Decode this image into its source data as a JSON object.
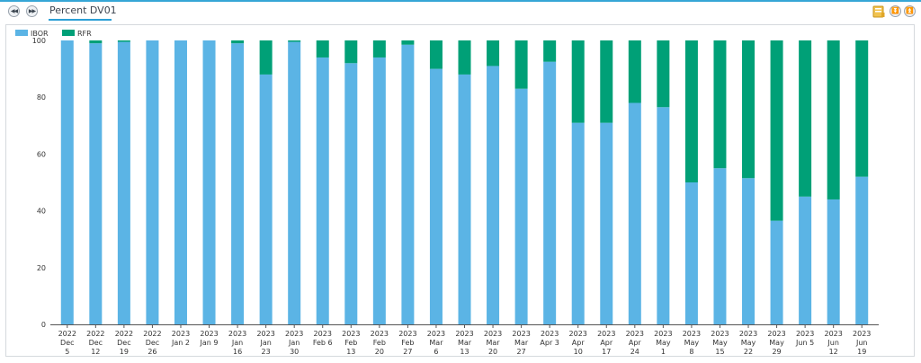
{
  "nav": {
    "prev_icon": "rewind-icon",
    "next_icon": "fast-forward-icon",
    "prev_glyph": "◀◀",
    "next_glyph": "▶▶"
  },
  "tab": {
    "label": "Percent DV01"
  },
  "toolbar_right": {
    "folder_icon": "folder-icon",
    "collapse_icon": "chevron-double-down-icon",
    "expand_icon": "chevron-double-up-icon",
    "collapse_glyph": "⏬",
    "expand_glyph": "⏫"
  },
  "colors": {
    "ibor": "#5bb4e5",
    "rfr": "#00a077",
    "accent": "#2a9fd6"
  },
  "chart_data": {
    "type": "bar",
    "stacked": true,
    "title": "",
    "xlabel": "",
    "ylabel": "",
    "ylim": [
      0,
      100
    ],
    "yticks": [
      0,
      20,
      40,
      60,
      80,
      100
    ],
    "legend": {
      "position": "top-left",
      "entries": [
        "IBOR",
        "RFR"
      ]
    },
    "categories": [
      [
        "2022",
        "Dec",
        "5"
      ],
      [
        "2022",
        "Dec",
        "12"
      ],
      [
        "2022",
        "Dec",
        "19"
      ],
      [
        "2022",
        "Dec",
        "26"
      ],
      [
        "2023",
        "Jan 2"
      ],
      [
        "2023",
        "Jan 9"
      ],
      [
        "2023",
        "Jan",
        "16"
      ],
      [
        "2023",
        "Jan",
        "23"
      ],
      [
        "2023",
        "Jan",
        "30"
      ],
      [
        "2023",
        "Feb 6"
      ],
      [
        "2023",
        "Feb",
        "13"
      ],
      [
        "2023",
        "Feb",
        "20"
      ],
      [
        "2023",
        "Feb",
        "27"
      ],
      [
        "2023",
        "Mar",
        "6"
      ],
      [
        "2023",
        "Mar",
        "13"
      ],
      [
        "2023",
        "Mar",
        "20"
      ],
      [
        "2023",
        "Mar",
        "27"
      ],
      [
        "2023",
        "Apr 3"
      ],
      [
        "2023",
        "Apr",
        "10"
      ],
      [
        "2023",
        "Apr",
        "17"
      ],
      [
        "2023",
        "Apr",
        "24"
      ],
      [
        "2023",
        "May",
        "1"
      ],
      [
        "2023",
        "May",
        "8"
      ],
      [
        "2023",
        "May",
        "15"
      ],
      [
        "2023",
        "May",
        "22"
      ],
      [
        "2023",
        "May",
        "29"
      ],
      [
        "2023",
        "Jun 5"
      ],
      [
        "2023",
        "Jun",
        "12"
      ],
      [
        "2023",
        "Jun",
        "19"
      ]
    ],
    "series": [
      {
        "name": "IBOR",
        "values": [
          100,
          99,
          99.5,
          100,
          100,
          100,
          99,
          88,
          99.5,
          94,
          92,
          94,
          98.5,
          90,
          88,
          91,
          83,
          92.5,
          71,
          71,
          78,
          76.5,
          50,
          55,
          51.5,
          36.5,
          45,
          44,
          52
        ]
      },
      {
        "name": "RFR",
        "values": [
          0,
          1,
          0.5,
          0,
          0,
          0,
          1,
          12,
          0.5,
          6,
          8,
          6,
          1.5,
          10,
          12,
          9,
          17,
          7.5,
          29,
          29,
          22,
          23.5,
          50,
          45,
          48.5,
          63.5,
          55,
          56,
          48
        ]
      }
    ]
  }
}
